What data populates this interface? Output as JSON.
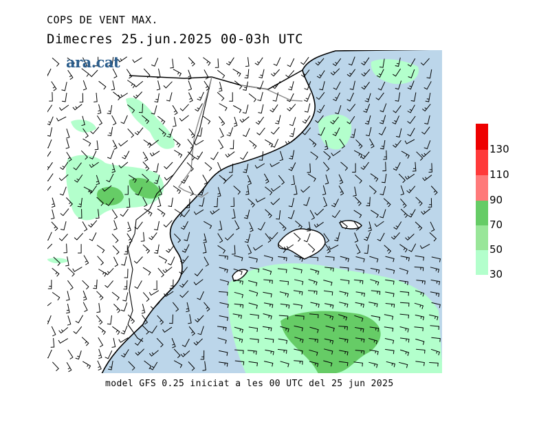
{
  "header": {
    "title": "COPS DE VENT MAX.",
    "subtitle": "Dimecres  25.jun.2025 00-03h UTC"
  },
  "logo": {
    "text": "ara.cat"
  },
  "footer": {
    "text": "model GFS 0.25 iniciat a les 00 UTC del 25 jun 2025"
  },
  "legend": {
    "labels": [
      "130",
      "110",
      "90",
      "70",
      "50",
      "30"
    ],
    "colors": [
      "#ee0000",
      "#ff3a3a",
      "#ff7a7a",
      "#66cc66",
      "#99e699",
      "#b3ffcc"
    ]
  },
  "map": {
    "sea_color": "#bcd6ea",
    "land_color": "#ffffff",
    "gust_colors": {
      "30": "#b3ffcc",
      "50": "#99e699",
      "70": "#66cc66"
    }
  }
}
